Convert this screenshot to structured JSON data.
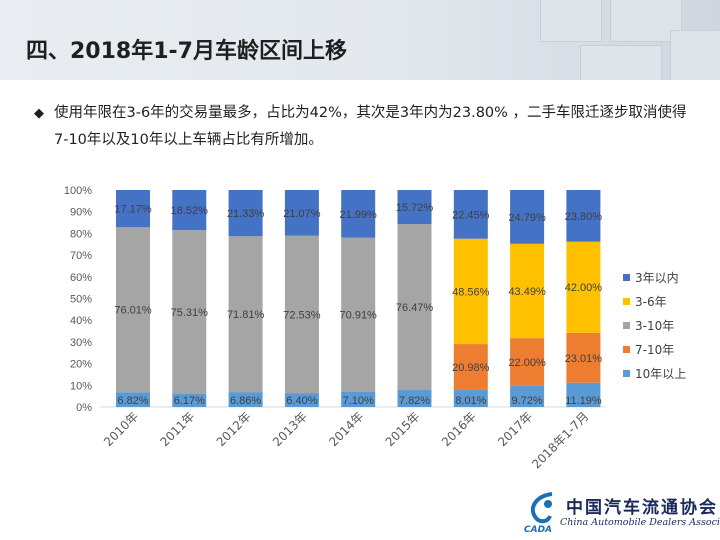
{
  "header": {
    "title": "四、2018年1-7月车龄区间上移"
  },
  "bullet": {
    "marker": "◆",
    "text": "使用年限在3-6年的交易量最多，占比为42%，其次是3年内为23.80% ，二手车限迁逐步取消使得7-10年以及10年以上车辆占比有所增加。"
  },
  "logo": {
    "cn": "中国汽车流通协会",
    "en": "China Automobile Dealers Association",
    "mark_text": "CADA"
  },
  "chart_data": {
    "type": "bar",
    "stacked": true,
    "percent": true,
    "categories": [
      "2010年",
      "2011年",
      "2012年",
      "2013年",
      "2014年",
      "2015年",
      "2016年",
      "2017年",
      "2018年1-7月"
    ],
    "series": [
      {
        "name": "10年以上",
        "color": "#5b9bd5",
        "values": [
          6.82,
          6.17,
          6.86,
          6.4,
          7.1,
          7.82,
          8.01,
          9.72,
          11.19
        ]
      },
      {
        "name": "7-10年",
        "color": "#ed7d31",
        "values": [
          null,
          null,
          null,
          null,
          null,
          null,
          20.98,
          22.0,
          23.01
        ]
      },
      {
        "name": "3-10年",
        "color": "#a5a5a5",
        "values": [
          76.01,
          75.31,
          71.81,
          72.53,
          70.91,
          76.47,
          null,
          null,
          null
        ]
      },
      {
        "name": "3-6年",
        "color": "#ffc000",
        "values": [
          null,
          null,
          null,
          null,
          null,
          null,
          48.56,
          43.49,
          42.0
        ]
      },
      {
        "name": "3年以内",
        "color": "#4472c4",
        "values": [
          17.17,
          18.52,
          21.33,
          21.07,
          21.99,
          15.72,
          22.45,
          24.79,
          23.8
        ]
      }
    ],
    "legend_order": [
      "3年以内",
      "3-6年",
      "3-10年",
      "7-10年",
      "10年以上"
    ],
    "legend_position": "right",
    "yticks": [
      "0%",
      "10%",
      "20%",
      "30%",
      "40%",
      "50%",
      "60%",
      "70%",
      "80%",
      "90%",
      "100%"
    ],
    "ylim": [
      0,
      100
    ],
    "grid": false
  }
}
